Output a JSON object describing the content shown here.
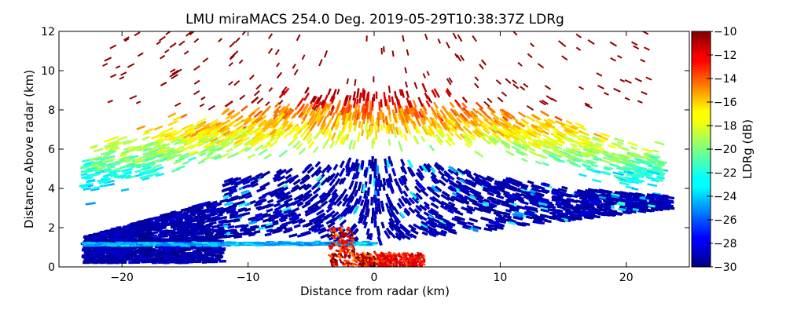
{
  "chart_data": {
    "type": "heatmap",
    "title": "LMU miraMACS 254.0 Deg. 2019-05-29T10:38:37Z  LDRg",
    "xlabel": "Distance from radar (km)",
    "ylabel": "Distance Above radar  (km)",
    "xlim": [
      -25,
      25
    ],
    "ylim": [
      0,
      12
    ],
    "x_ticks": [
      -20,
      -10,
      0,
      10,
      20
    ],
    "x_tick_labels": [
      "−20",
      "−10",
      "0",
      "10",
      "20"
    ],
    "y_ticks": [
      0,
      2,
      4,
      6,
      8,
      10,
      12
    ],
    "y_tick_labels": [
      "0",
      "2",
      "4",
      "6",
      "8",
      "10",
      "12"
    ],
    "colorbar": {
      "label": "LDRg (dB)",
      "range": [
        -30,
        -10
      ],
      "ticks": [
        -30,
        -28,
        -26,
        -24,
        -22,
        -20,
        -18,
        -16,
        -14,
        -12,
        -10
      ],
      "tick_labels": [
        "−30",
        "−28",
        "−26",
        "−24",
        "−22",
        "−20",
        "−18",
        "−16",
        "−14",
        "−12",
        "−10"
      ],
      "colormap": "jet"
    },
    "grid": false,
    "features": [
      {
        "name": "cloud-layer",
        "x_range": [
          -12,
          23.5
        ],
        "y_range": [
          1.5,
          5.5
        ],
        "ldr_approx": -29
      },
      {
        "name": "melting-layer",
        "x_range": [
          -23,
          0
        ],
        "y_range": [
          0.9,
          1.4
        ],
        "ldr_approx": -24
      },
      {
        "name": "upper-fringe",
        "x_range": [
          -23,
          23
        ],
        "y_range": [
          4.5,
          8.5
        ],
        "ldr_approx": -18
      },
      {
        "name": "ground-clutter",
        "x_range": [
          -3.5,
          4
        ],
        "y_range": [
          0,
          2
        ],
        "ldr_approx": -12
      }
    ]
  }
}
